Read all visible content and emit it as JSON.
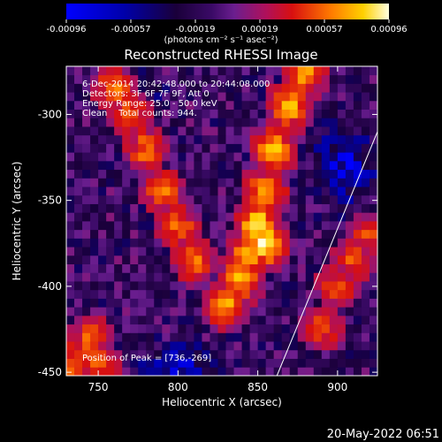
{
  "chart_data": {
    "type": "heatmap",
    "title": "Reconstructed RHESSI Image",
    "xlabel": "Heliocentric X (arcsec)",
    "ylabel": "Heliocentric Y (arcsec)",
    "xlim": [
      730,
      925
    ],
    "ylim": [
      -452,
      -272
    ],
    "x_ticks": [
      750,
      800,
      850,
      900
    ],
    "y_ticks": [
      -300,
      -350,
      -400,
      -450
    ],
    "colorbar": {
      "range": [
        -0.00096,
        0.00096
      ],
      "ticks": [
        "-0.00096",
        "-0.00057",
        "-0.00019",
        "0.00019",
        "0.00057",
        "0.00096"
      ],
      "unit_label": "(photons cm⁻² s⁻¹ asec⁻²)",
      "colors": [
        "#0000ff",
        "#000033",
        "#5a1a8c",
        "#c81b00",
        "#ff6a00",
        "#ffd000",
        "#ffffe0"
      ]
    },
    "annotations": [
      "6-Dec-2014 20:42:48.000 to 20:44:08.000",
      "Detectors: 3F 6F 7F 9F, Att 0",
      "Energy Range: 25.0 - 50.0 keV",
      "Clean    Total counts: 944."
    ],
    "peak_label": "Position of Peak = [736,-269]",
    "peak_position": [
      736,
      -269
    ],
    "limb_line": {
      "x": [
        862,
        925
      ],
      "y": [
        -452,
        -310
      ]
    },
    "hot_ridges": [
      {
        "x": [
          760,
          770,
          780,
          790,
          800,
          810
        ],
        "y": [
          -285,
          -300,
          -320,
          -345,
          -365,
          -385
        ],
        "intensity": 0.55
      },
      {
        "x": [
          880,
          870,
          860,
          855,
          850,
          845,
          840,
          830
        ],
        "y": [
          -275,
          -295,
          -320,
          -345,
          -365,
          -380,
          -395,
          -410
        ],
        "intensity": 0.75
      },
      {
        "x": [
          850,
          855
        ],
        "y": [
          -365,
          -375
        ],
        "intensity": 0.95
      },
      {
        "x": [
          745,
          740,
          735,
          750
        ],
        "y": [
          -430,
          -440,
          -447,
          -445
        ],
        "intensity": 0.5
      },
      {
        "x": [
          900,
          910,
          920,
          890
        ],
        "y": [
          -400,
          -385,
          -370,
          -425
        ],
        "intensity": 0.45
      }
    ]
  },
  "timestamp": "20-May-2022 06:51"
}
